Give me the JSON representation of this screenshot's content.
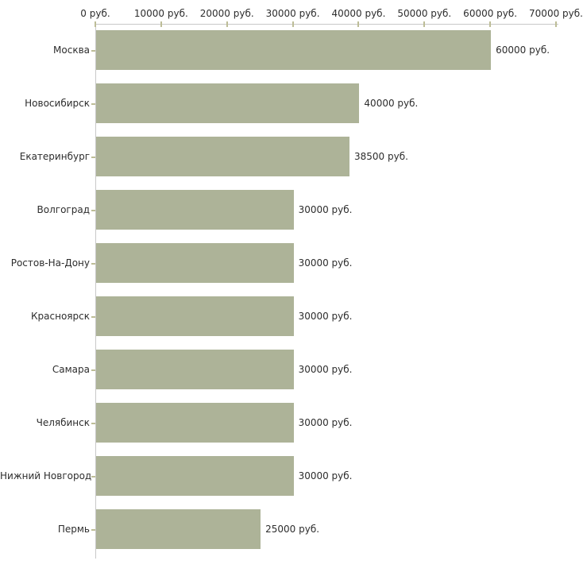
{
  "chart_data": {
    "type": "bar",
    "orientation": "horizontal",
    "title": "",
    "xlabel": "",
    "ylabel": "",
    "unit": "руб.",
    "categories": [
      "Москва",
      "Новосибирск",
      "Екатеринбург",
      "Волгоград",
      "Ростов-На-Дону",
      "Красноярск",
      "Самара",
      "Челябинск",
      "Нижний Новгород",
      "Пермь"
    ],
    "values": [
      60000,
      40000,
      38500,
      30000,
      30000,
      30000,
      30000,
      30000,
      30000,
      25000
    ],
    "value_labels": [
      "60000 руб.",
      "40000 руб.",
      "38500 руб.",
      "30000 руб.",
      "30000 руб.",
      "30000 руб.",
      "30000 руб.",
      "30000 руб.",
      "30000 руб.",
      "25000 руб."
    ],
    "x_ticks": [
      0,
      10000,
      20000,
      30000,
      40000,
      50000,
      60000,
      70000
    ],
    "x_tick_labels": [
      "0 руб.",
      "10000 руб.",
      "20000 руб.",
      "30000 руб.",
      "40000 руб.",
      "50000 руб.",
      "60000 руб.",
      "70000 руб."
    ],
    "xlim": [
      0,
      70000
    ],
    "grid": false,
    "legend": false,
    "axis_position": "top",
    "colors": {
      "bar": "#adb398",
      "axis_line": "#c8c8c8",
      "tick": "#bdbd97",
      "text": "#2d2d2d",
      "background": "#ffffff"
    }
  }
}
